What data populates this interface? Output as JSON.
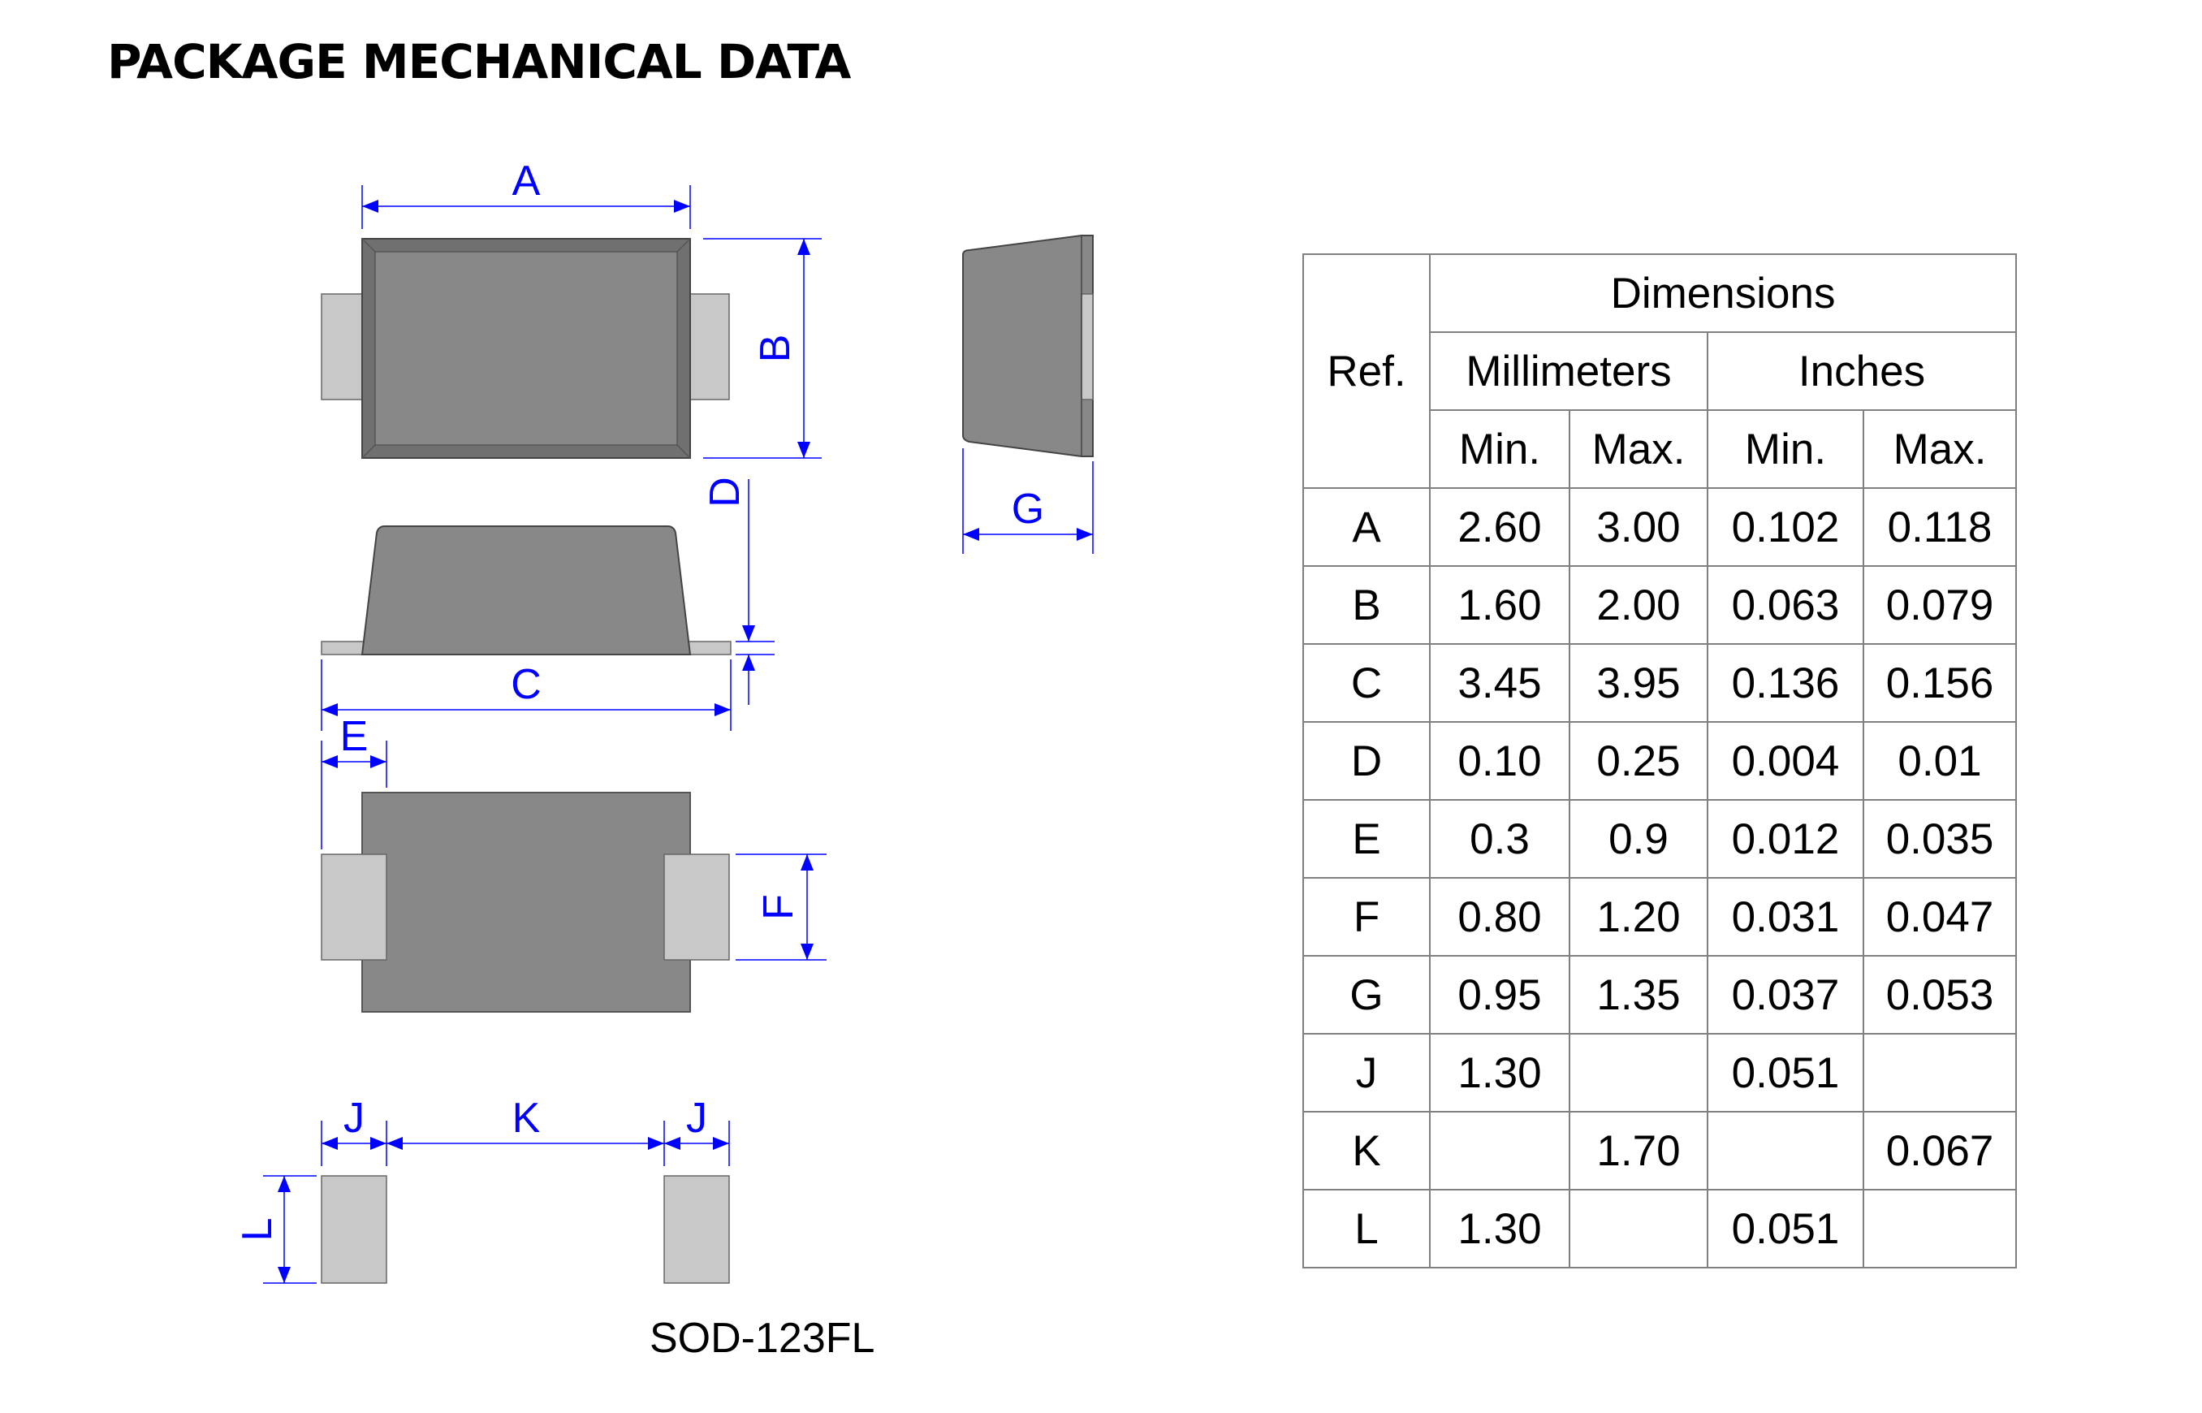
{
  "title": "PACKAGE MECHANICAL DATA",
  "package_name": "SOD-123FL",
  "colors": {
    "body": "#888888",
    "body_edge": "#555555",
    "lead": "#c8c8c8",
    "dimension": "#0000ff",
    "table_border": "#808080"
  },
  "drawing_labels": {
    "A": "A",
    "B": "B",
    "C": "C",
    "D": "D",
    "E": "E",
    "F": "F",
    "G": "G",
    "J": "J",
    "K": "K",
    "L": "L"
  },
  "table": {
    "ref_header": "Ref.",
    "dimensions_header": "Dimensions",
    "mm_header": "Millimeters",
    "in_header": "Inches",
    "min_label": "Min.",
    "max_label": "Max.",
    "rows": [
      {
        "ref": "A",
        "mm_min": "2.60",
        "mm_max": "3.00",
        "in_min": "0.102",
        "in_max": "0.118"
      },
      {
        "ref": "B",
        "mm_min": "1.60",
        "mm_max": "2.00",
        "in_min": "0.063",
        "in_max": "0.079"
      },
      {
        "ref": "C",
        "mm_min": "3.45",
        "mm_max": "3.95",
        "in_min": "0.136",
        "in_max": "0.156"
      },
      {
        "ref": "D",
        "mm_min": "0.10",
        "mm_max": "0.25",
        "in_min": "0.004",
        "in_max": "0.01"
      },
      {
        "ref": "E",
        "mm_min": "0.3",
        "mm_max": "0.9",
        "in_min": "0.012",
        "in_max": "0.035"
      },
      {
        "ref": "F",
        "mm_min": "0.80",
        "mm_max": "1.20",
        "in_min": "0.031",
        "in_max": "0.047"
      },
      {
        "ref": "G",
        "mm_min": "0.95",
        "mm_max": "1.35",
        "in_min": "0.037",
        "in_max": "0.053"
      },
      {
        "ref": "J",
        "mm_min": "1.30",
        "mm_max": "",
        "in_min": "0.051",
        "in_max": ""
      },
      {
        "ref": "K",
        "mm_min": "",
        "mm_max": "1.70",
        "in_min": "",
        "in_max": "0.067"
      },
      {
        "ref": "L",
        "mm_min": "1.30",
        "mm_max": "",
        "in_min": "0.051",
        "in_max": ""
      }
    ]
  }
}
